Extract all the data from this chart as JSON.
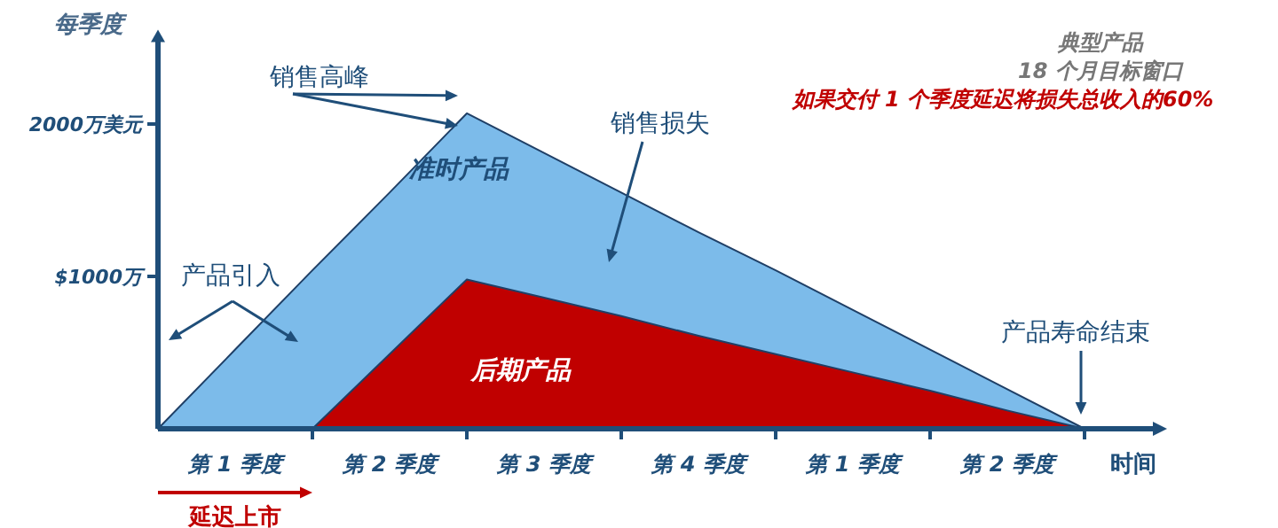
{
  "chart_data": {
    "type": "area",
    "title": "典型产品",
    "subtitle": "18 个月目标窗口",
    "xlabel": "时间",
    "ylabel": "每季度",
    "annotations": [
      "销售高峰",
      "产品引入",
      "销售损失",
      "产品寿命结束",
      "延迟上市",
      "如果交付 1 个季度延迟将损失总收入的60%"
    ],
    "categories": [
      null,
      "第 1 季度",
      null,
      "第 2 季度",
      null,
      "第 3 季度",
      null,
      "第 4 季度",
      null,
      "第 1 季度",
      null,
      "第 2 季度",
      null
    ],
    "ylim": [
      0,
      2550
    ],
    "yticks": [
      {
        "value": 1000,
        "label": "$1000万"
      },
      {
        "value": 2000,
        "label": "2000万美元"
      }
    ],
    "series": [
      {
        "name": "准时产品",
        "color": "#7cbbea",
        "values": [
          0,
          520,
          1040,
          1550,
          2070,
          1810,
          1550,
          1290,
          1040,
          780,
          520,
          260,
          0
        ]
      },
      {
        "name": "后期产品",
        "color": "#c00000",
        "values": [
          null,
          null,
          0,
          490,
          980,
          860,
          740,
          610,
          490,
          370,
          250,
          120,
          0
        ]
      }
    ]
  }
}
